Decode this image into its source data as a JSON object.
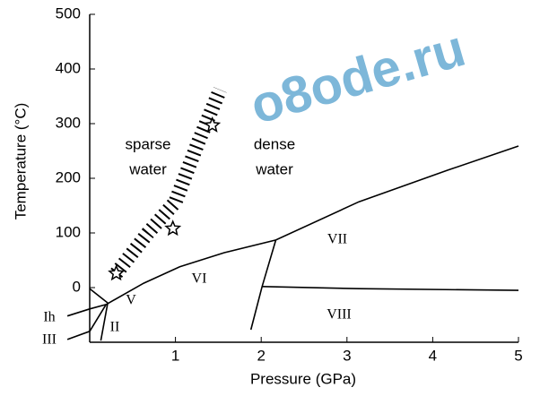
{
  "chart_data": {
    "type": "line",
    "xlabel": "Pressure (GPa)",
    "ylabel": "Temperature (°C)",
    "xlim": [
      0,
      5
    ],
    "ylim": [
      -100,
      500
    ],
    "xticks": [
      1,
      2,
      3,
      4,
      5
    ],
    "yticks": [
      0,
      100,
      200,
      300,
      400,
      500
    ],
    "series": [
      {
        "color": "#000000",
        "style": "solid",
        "x": [
          0.19,
          0.63,
          1.05,
          1.57,
          2.17,
          3.14,
          4.18,
          5
        ],
        "values": [
          -31,
          8,
          38,
          64,
          87,
          157,
          215,
          259
        ]
      },
      {
        "color": "#000000",
        "style": "solid",
        "x": [
          2.17,
          2.01,
          1.88
        ],
        "values": [
          87,
          2,
          -77
        ]
      },
      {
        "color": "#000000",
        "style": "solid",
        "x": [
          2.01,
          3.14,
          5
        ],
        "values": [
          2,
          -2,
          -5
        ]
      },
      {
        "color": "#000000",
        "style": "solid",
        "x": [
          -0.26,
          0,
          0.19
        ],
        "values": [
          -52,
          -39,
          -31
        ]
      },
      {
        "color": "#000000",
        "style": "solid",
        "x": [
          -0.26,
          0,
          0.19
        ],
        "values": [
          -95,
          -80,
          -31
        ]
      },
      {
        "color": "#000000",
        "style": "solid",
        "x": [
          0,
          0.21
        ],
        "values": [
          -2,
          -28
        ]
      },
      {
        "color": "#000000",
        "style": "solid",
        "x": [
          0.13,
          0.21
        ],
        "values": [
          -97,
          -28
        ]
      },
      {
        "color": "#000000",
        "style": "hatched",
        "x": [
          0.31,
          0.68,
          1.0,
          1.26,
          1.52
        ],
        "values": [
          26,
          100,
          157,
          264,
          362
        ]
      },
      {
        "color": "#000000",
        "style": "star",
        "x": [
          0.31,
          0.97,
          1.43
        ],
        "values": [
          26,
          108,
          297
        ]
      }
    ],
    "annotations": [
      "sparse",
      "water",
      "dense",
      "water",
      "VII",
      "VI",
      "V",
      "VIII",
      "II",
      "Ih",
      "III"
    ],
    "watermark": "o8ode.ru"
  }
}
